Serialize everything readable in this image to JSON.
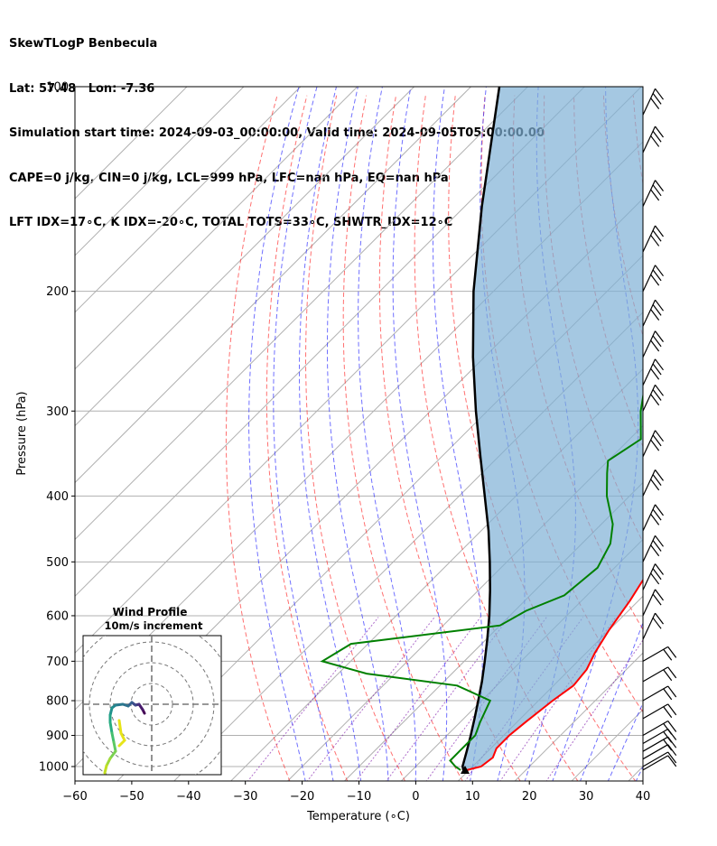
{
  "header": {
    "line1": "SkewTLogP Benbecula",
    "line2": "Lat: 57.48   Lon: -7.36",
    "line3": "Simulation start time: 2024-09-03_00:00:00, Valid time: 2024-09-05T05:00:00.00",
    "line4": "CAPE=0 j/kg, CIN=0 j/kg, LCL=999 hPa, LFC=nan hPa, EQ=nan hPa",
    "line5": "LFT IDX=17∘C, K IDX=-20∘C, TOTAL TOTS=33∘C, SHWTR_IDX=12∘C"
  },
  "chart_data": {
    "type": "line",
    "subtype": "skew-t log-p",
    "xlabel": "Temperature (∘C)",
    "ylabel": "Pressure (hPa)",
    "xlim": [
      -60,
      40
    ],
    "ylim": [
      1050,
      100
    ],
    "y_scale": "log",
    "grid": true,
    "x_ticks": [
      -60,
      -50,
      -40,
      -30,
      -20,
      -10,
      0,
      10,
      20,
      30,
      40
    ],
    "y_ticks": [
      100,
      200,
      300,
      400,
      500,
      600,
      700,
      800,
      900,
      1000
    ],
    "series": [
      {
        "role": "temperature",
        "color": "#ff0000",
        "points": [
          [
            1012,
            9.6
          ],
          [
            1000,
            11.5
          ],
          [
            970,
            12
          ],
          [
            940,
            11
          ],
          [
            900,
            11
          ],
          [
            860,
            11.5
          ],
          [
            800,
            12.5
          ],
          [
            760,
            13.5
          ],
          [
            720,
            13
          ],
          [
            680,
            11.5
          ],
          [
            630,
            10
          ],
          [
            570,
            8.5
          ],
          [
            500,
            6
          ],
          [
            450,
            4
          ],
          [
            400,
            1.5
          ],
          [
            360,
            -1.5
          ],
          [
            330,
            -3.5
          ],
          [
            300,
            -5
          ],
          [
            260,
            -6
          ],
          [
            220,
            -7
          ],
          [
            200,
            -7
          ],
          [
            180,
            -6
          ],
          [
            160,
            -6
          ],
          [
            150,
            -6
          ],
          [
            140,
            -5.5
          ],
          [
            125,
            -5
          ],
          [
            112,
            -1
          ],
          [
            103,
            1
          ],
          [
            100,
            1.5
          ]
        ]
      },
      {
        "role": "dewpoint",
        "color": "#008000",
        "points": [
          [
            1012,
            8.5
          ],
          [
            1000,
            7
          ],
          [
            980,
            5
          ],
          [
            950,
            5
          ],
          [
            900,
            5
          ],
          [
            860,
            3.5
          ],
          [
            800,
            1.5
          ],
          [
            760,
            -7
          ],
          [
            730,
            -25
          ],
          [
            700,
            -35
          ],
          [
            660,
            -33
          ],
          [
            620,
            -10
          ],
          [
            590,
            -8
          ],
          [
            560,
            -4
          ],
          [
            510,
            -3
          ],
          [
            470,
            -5
          ],
          [
            440,
            -8
          ],
          [
            400,
            -14
          ],
          [
            370,
            -18
          ],
          [
            355,
            -20
          ],
          [
            330,
            -18
          ],
          [
            300,
            -23
          ],
          [
            280,
            -26
          ],
          [
            250,
            -27
          ],
          [
            220,
            -26
          ],
          [
            210,
            -25
          ],
          [
            200,
            -25
          ],
          [
            190,
            -30
          ],
          [
            180,
            -33
          ],
          [
            170,
            -33
          ],
          [
            150,
            -29
          ],
          [
            120,
            -24
          ],
          [
            100,
            -18
          ]
        ]
      },
      {
        "role": "parcel",
        "color": "#000000",
        "points": [
          [
            1012,
            9
          ],
          [
            999,
            8.2
          ],
          [
            950,
            6.3
          ],
          [
            900,
            4.2
          ],
          [
            850,
            1.9
          ],
          [
            800,
            -0.6
          ],
          [
            750,
            -3.3
          ],
          [
            700,
            -6.4
          ],
          [
            650,
            -9.8
          ],
          [
            600,
            -13.6
          ],
          [
            550,
            -18
          ],
          [
            500,
            -23
          ],
          [
            450,
            -28.7
          ],
          [
            400,
            -35.5
          ],
          [
            350,
            -43.2
          ],
          [
            300,
            -52
          ],
          [
            250,
            -62
          ],
          [
            200,
            -73.5
          ],
          [
            150,
            -87
          ],
          [
            100,
            -105
          ]
        ]
      }
    ],
    "wind_barbs_hPa": [
      1012,
      1000,
      975,
      950,
      925,
      900,
      850,
      800,
      750,
      700,
      650,
      600,
      550,
      500,
      450,
      400,
      350,
      300,
      275,
      250,
      225,
      200,
      175,
      150,
      125,
      110
    ],
    "inset": {
      "title": "Wind Profile",
      "subtitle": "10m/s increment"
    }
  }
}
